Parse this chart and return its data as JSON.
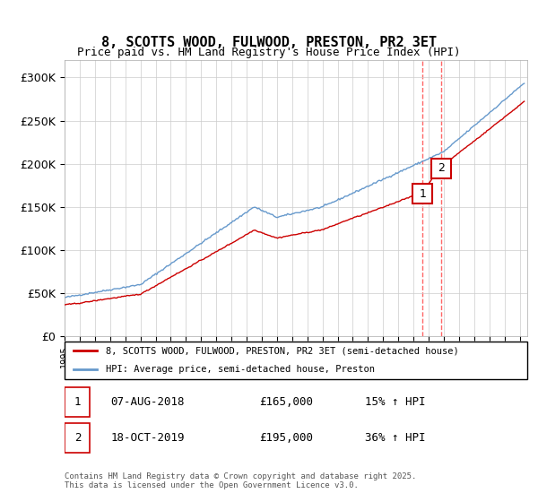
{
  "title_line1": "8, SCOTTS WOOD, FULWOOD, PRESTON, PR2 3ET",
  "title_line2": "Price paid vs. HM Land Registry's House Price Index (HPI)",
  "xlim_start": 1995.0,
  "xlim_end": 2025.5,
  "ylim_min": 0,
  "ylim_max": 320000,
  "yticks": [
    0,
    50000,
    100000,
    150000,
    200000,
    250000,
    300000
  ],
  "ytick_labels": [
    "£0",
    "£50K",
    "£100K",
    "£150K",
    "£200K",
    "£250K",
    "£300K"
  ],
  "transaction1": {
    "date_num": 2018.6,
    "price": 165000,
    "label": "1"
  },
  "transaction2": {
    "date_num": 2019.8,
    "price": 195000,
    "label": "2"
  },
  "line1_label": "8, SCOTTS WOOD, FULWOOD, PRESTON, PR2 3ET (semi-detached house)",
  "line2_label": "HPI: Average price, semi-detached house, Preston",
  "table_rows": [
    {
      "num": "1",
      "date": "07-AUG-2018",
      "price": "£165,000",
      "hpi": "15% ↑ HPI"
    },
    {
      "num": "2",
      "date": "18-OCT-2019",
      "price": "£195,000",
      "hpi": "36% ↑ HPI"
    }
  ],
  "footer": "Contains HM Land Registry data © Crown copyright and database right 2025.\nThis data is licensed under the Open Government Licence v3.0.",
  "line1_color": "#cc0000",
  "line2_color": "#6699cc",
  "vline_color": "#ff6666",
  "background_color": "#ffffff",
  "grid_color": "#cccccc"
}
